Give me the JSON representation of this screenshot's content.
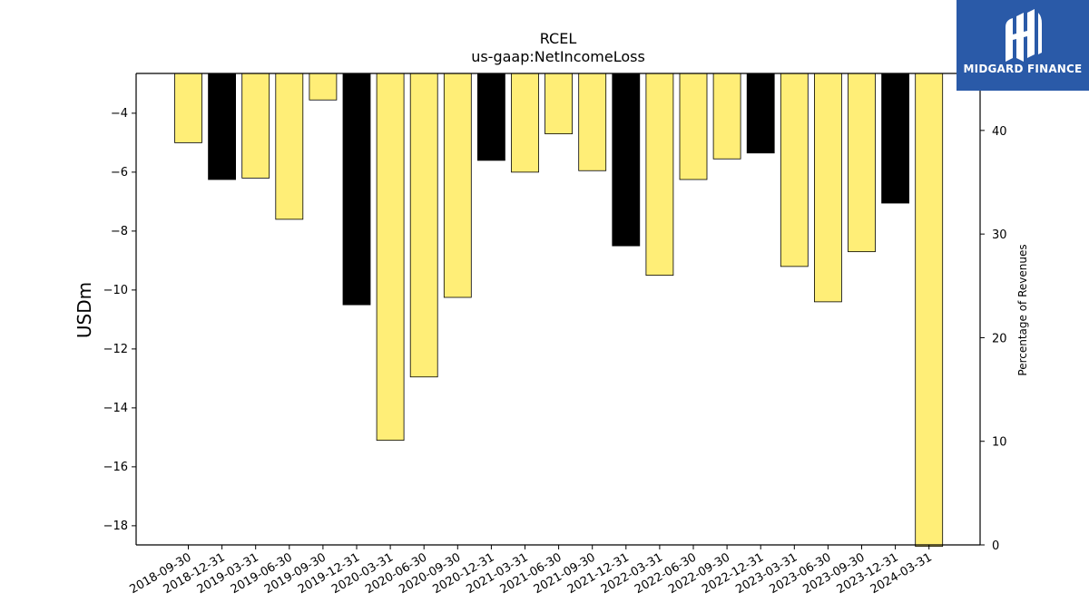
{
  "chart_data": {
    "type": "bar",
    "title": "RCEL",
    "subtitle": "us-gaap:NetIncomeLoss",
    "ylabel": "USDm",
    "y2label": "Percentage of Revenues",
    "categories": [
      "2018-09-30",
      "2018-12-31",
      "2019-03-31",
      "2019-06-30",
      "2019-09-30",
      "2019-12-31",
      "2020-03-31",
      "2020-06-30",
      "2020-09-30",
      "2020-12-31",
      "2021-03-31",
      "2021-06-30",
      "2021-09-30",
      "2021-12-31",
      "2022-03-31",
      "2022-06-30",
      "2022-09-30",
      "2022-12-31",
      "2023-03-31",
      "2023-06-30",
      "2023-09-30",
      "2023-12-31",
      "2024-03-31"
    ],
    "values": [
      -5.0,
      -6.25,
      -6.2,
      -7.6,
      -3.55,
      -10.5,
      -15.1,
      -12.95,
      -10.25,
      -5.6,
      -6.0,
      -4.7,
      -5.95,
      -8.5,
      -9.5,
      -6.25,
      -5.55,
      -5.35,
      -9.2,
      -10.4,
      -8.7,
      -7.05,
      -18.7
    ],
    "bar_colors": [
      "#ffee77",
      "#000000",
      "#ffee77",
      "#ffee77",
      "#ffee77",
      "#000000",
      "#ffee77",
      "#ffee77",
      "#ffee77",
      "#000000",
      "#ffee77",
      "#ffee77",
      "#ffee77",
      "#000000",
      "#ffee77",
      "#ffee77",
      "#ffee77",
      "#000000",
      "#ffee77",
      "#ffee77",
      "#ffee77",
      "#000000",
      "#ffee77"
    ],
    "ylim": [
      -18.65,
      -2.65
    ],
    "yticks": [
      -4,
      -6,
      -8,
      -10,
      -12,
      -14,
      -16,
      -18
    ],
    "y2lim": [
      0,
      45.5
    ],
    "y2ticks": [
      0,
      10,
      20,
      30,
      40
    ],
    "grid": false,
    "legend": "none"
  },
  "logo": {
    "text": "MIDGARD FINANCE",
    "color": "#2a5aa8"
  }
}
